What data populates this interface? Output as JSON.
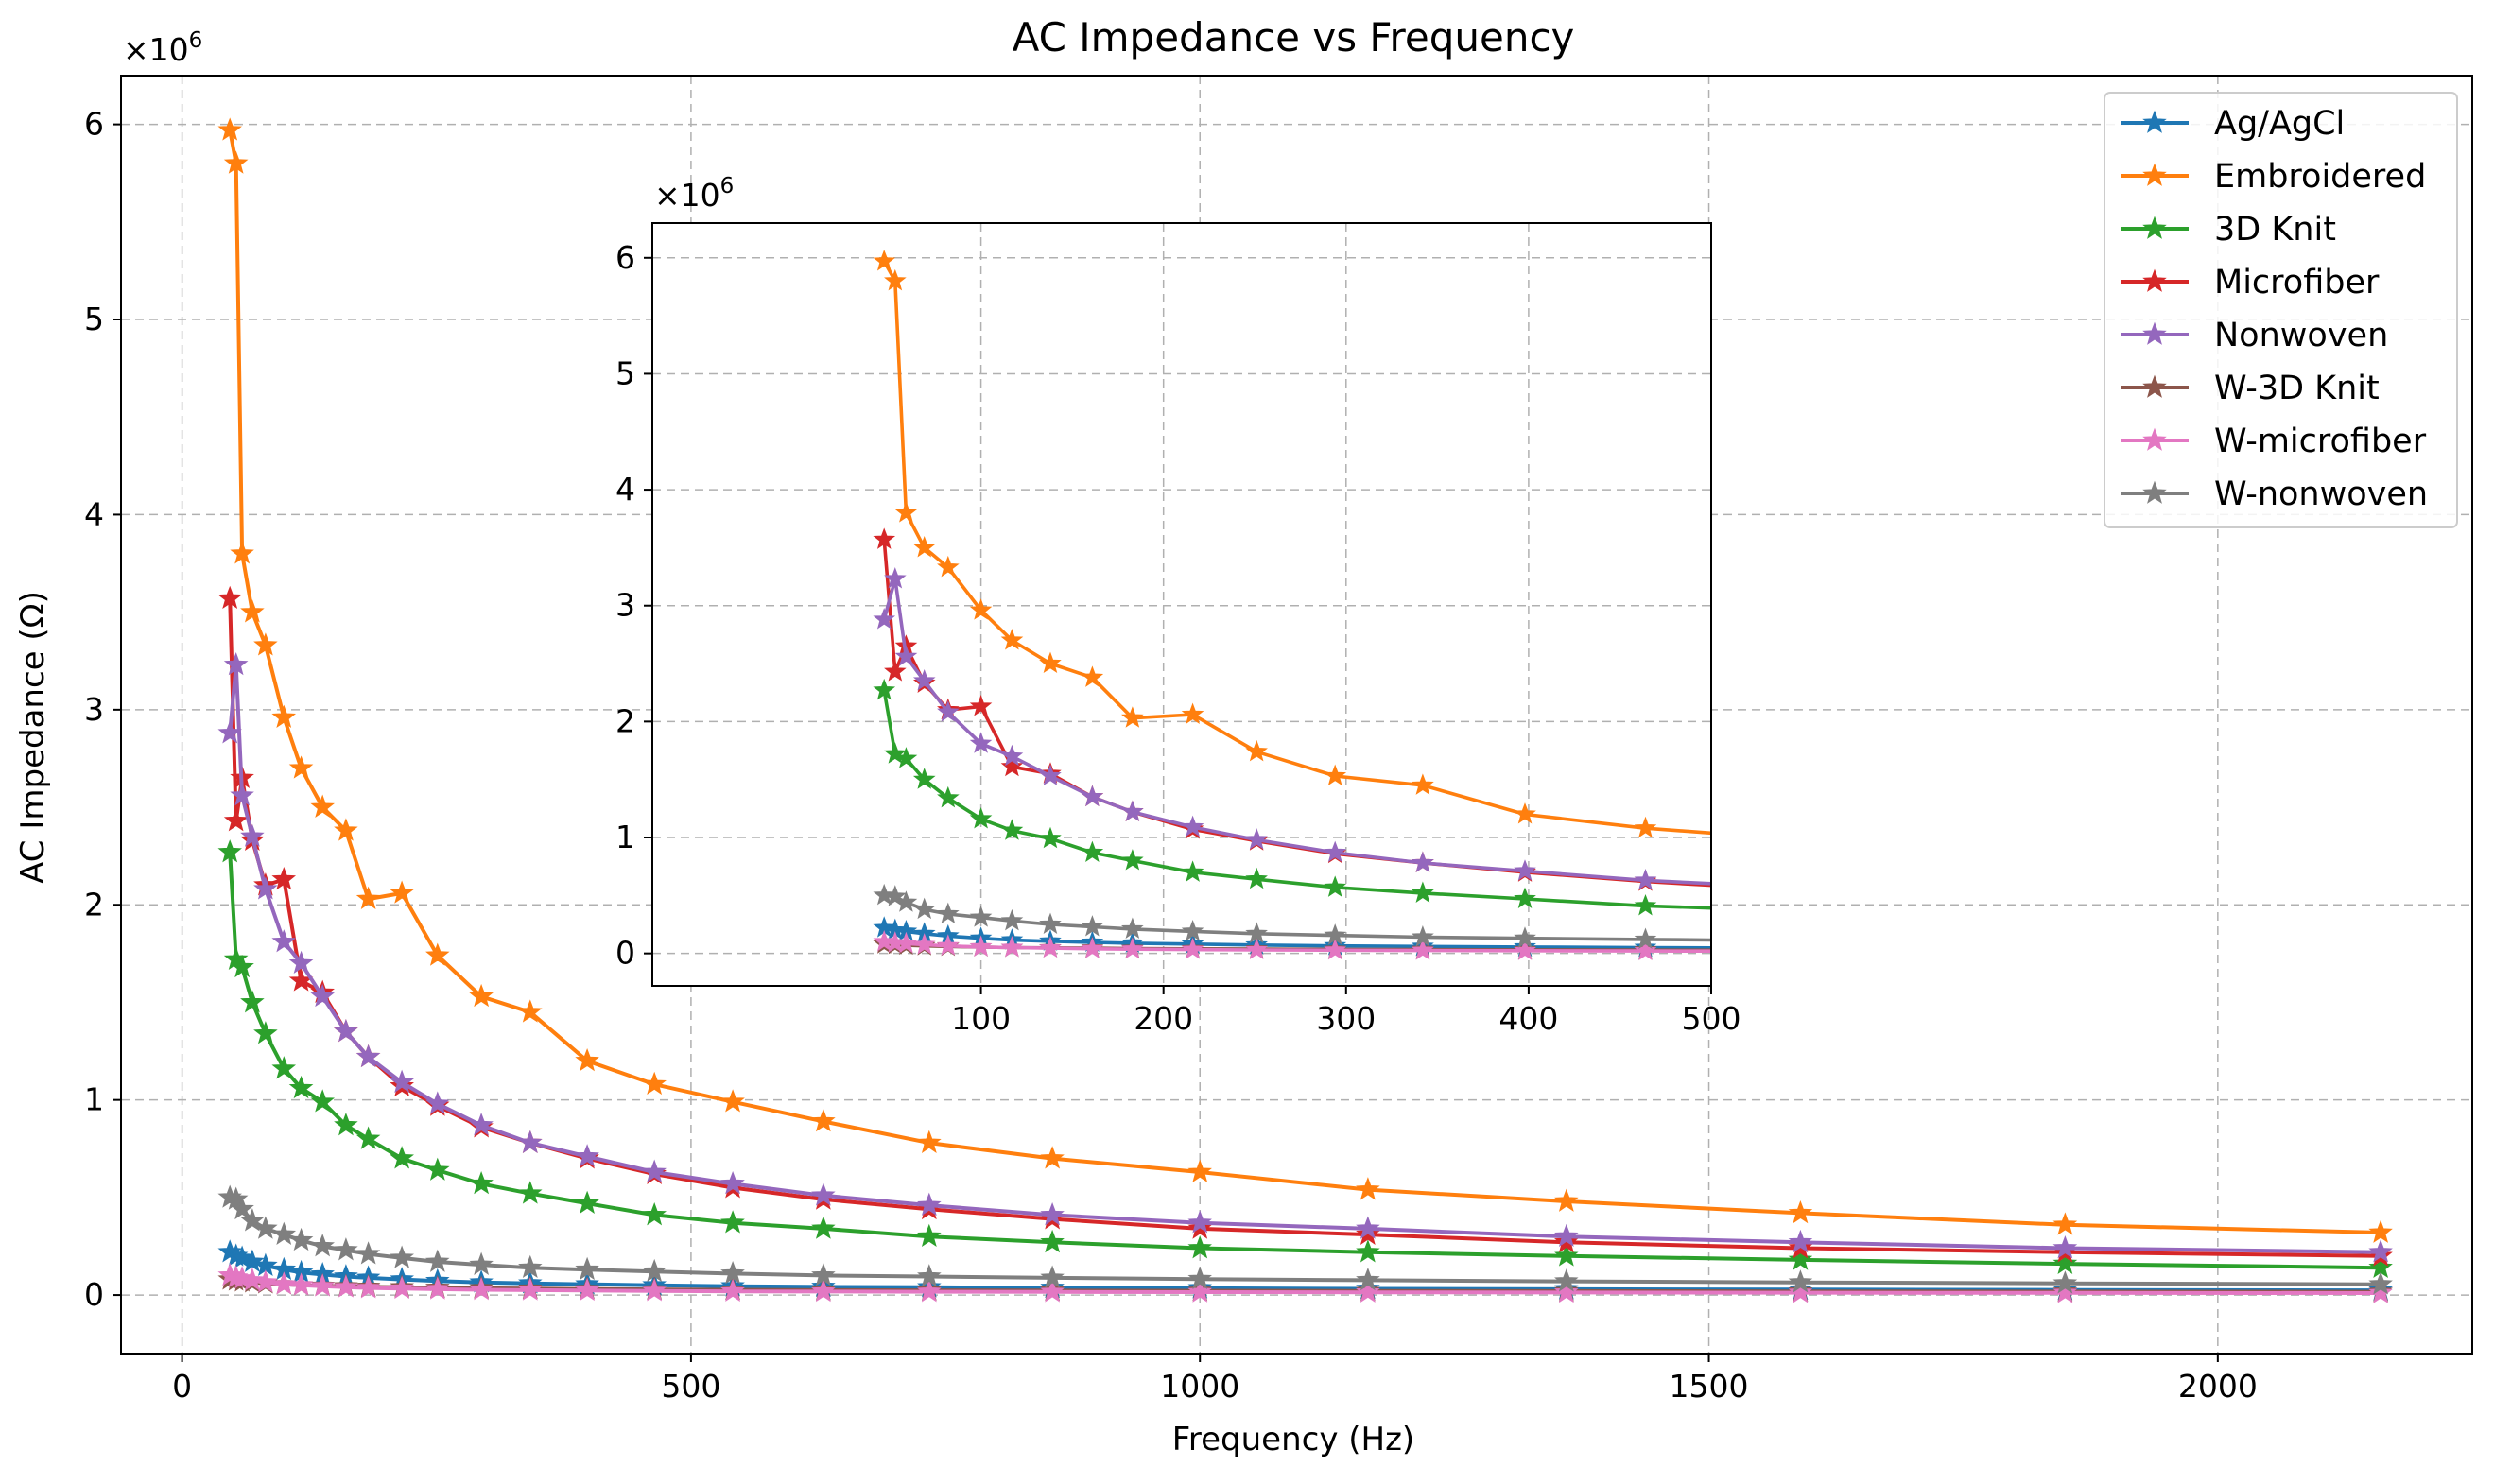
{
  "chart_data": {
    "type": "line",
    "title": "AC Impedance vs Frequency",
    "xlabel": "Frequency (Hz)",
    "ylabel": "AC Impedance (Ω)",
    "y_multiplier_base": "×10",
    "y_multiplier_exp": "6",
    "xlim": [
      -60,
      2250
    ],
    "ylim": [
      -0.3,
      6.25
    ],
    "xticks": [
      0,
      500,
      1000,
      1500,
      2000
    ],
    "xtick_labels": [
      "0",
      "500",
      "1000",
      "1500",
      "2000"
    ],
    "yticks": [
      0,
      1,
      2,
      3,
      4,
      5,
      6
    ],
    "ytick_labels": [
      "0",
      "1",
      "2",
      "3",
      "4",
      "5",
      "6"
    ],
    "grid": true,
    "legend_position": "upper right",
    "marker": "star",
    "x": [
      47,
      53,
      59,
      69,
      82,
      100,
      117,
      138,
      161,
      183,
      216,
      251,
      294,
      342,
      398,
      464,
      541,
      630,
      734,
      855,
      1000,
      1165,
      1360,
      1590,
      1850,
      2160
    ],
    "series": [
      {
        "name": "Ag/AgCl",
        "color": "#1f77b4",
        "values": [
          0.22,
          0.2,
          0.19,
          0.17,
          0.15,
          0.13,
          0.115,
          0.105,
          0.095,
          0.088,
          0.08,
          0.072,
          0.065,
          0.06,
          0.055,
          0.05,
          0.045,
          0.042,
          0.04,
          0.037,
          0.035,
          0.032,
          0.03,
          0.028,
          0.026,
          0.024
        ]
      },
      {
        "name": "Embroidered",
        "color": "#ff7f0e",
        "values": [
          5.97,
          5.8,
          3.8,
          3.5,
          3.33,
          2.96,
          2.7,
          2.5,
          2.38,
          2.03,
          2.06,
          1.74,
          1.53,
          1.45,
          1.2,
          1.08,
          0.99,
          0.89,
          0.78,
          0.7,
          0.63,
          0.54,
          0.48,
          0.42,
          0.36,
          0.32
        ]
      },
      {
        "name": "3D Knit",
        "color": "#2ca02c",
        "values": [
          2.27,
          1.72,
          1.68,
          1.5,
          1.34,
          1.16,
          1.06,
          0.99,
          0.87,
          0.8,
          0.7,
          0.64,
          0.57,
          0.52,
          0.47,
          0.41,
          0.37,
          0.34,
          0.3,
          0.27,
          0.24,
          0.22,
          0.2,
          0.18,
          0.16,
          0.14
        ]
      },
      {
        "name": "Microfiber",
        "color": "#d62728",
        "values": [
          3.57,
          2.43,
          2.65,
          2.33,
          2.1,
          2.13,
          1.61,
          1.55,
          1.35,
          1.22,
          1.07,
          0.97,
          0.86,
          0.78,
          0.7,
          0.62,
          0.55,
          0.49,
          0.44,
          0.39,
          0.34,
          0.31,
          0.27,
          0.24,
          0.22,
          0.2
        ]
      },
      {
        "name": "Nonwoven",
        "color": "#9467bd",
        "values": [
          2.88,
          3.23,
          2.56,
          2.35,
          2.08,
          1.81,
          1.7,
          1.53,
          1.35,
          1.22,
          1.09,
          0.98,
          0.87,
          0.78,
          0.71,
          0.63,
          0.57,
          0.51,
          0.46,
          0.41,
          0.37,
          0.34,
          0.3,
          0.27,
          0.24,
          0.22
        ]
      },
      {
        "name": "W-3D Knit",
        "color": "#8c564b",
        "values": [
          0.08,
          0.075,
          0.07,
          0.065,
          0.06,
          0.055,
          0.05,
          0.048,
          0.045,
          0.042,
          0.04,
          0.037,
          0.035,
          0.033,
          0.031,
          0.029,
          0.027,
          0.025,
          0.024,
          0.023,
          0.022,
          0.021,
          0.02,
          0.019,
          0.018,
          0.017
        ]
      },
      {
        "name": "W-microfiber",
        "color": "#e377c2",
        "values": [
          0.1,
          0.09,
          0.085,
          0.075,
          0.065,
          0.055,
          0.05,
          0.045,
          0.04,
          0.036,
          0.033,
          0.03,
          0.027,
          0.025,
          0.023,
          0.021,
          0.019,
          0.018,
          0.017,
          0.016,
          0.015,
          0.014,
          0.013,
          0.012,
          0.011,
          0.01
        ]
      },
      {
        "name": "W-nonwoven",
        "color": "#7f7f7f",
        "values": [
          0.5,
          0.49,
          0.44,
          0.38,
          0.34,
          0.31,
          0.28,
          0.25,
          0.23,
          0.21,
          0.19,
          0.17,
          0.155,
          0.14,
          0.13,
          0.12,
          0.11,
          0.1,
          0.095,
          0.088,
          0.082,
          0.076,
          0.07,
          0.065,
          0.06,
          0.055
        ]
      }
    ],
    "inset": {
      "xlim": [
        -80,
        500
      ],
      "ylim": [
        -0.28,
        6.3
      ],
      "xticks": [
        100,
        200,
        300,
        400,
        500
      ],
      "xtick_labels": [
        "100",
        "200",
        "300",
        "400",
        "500"
      ],
      "yticks": [
        0,
        1,
        2,
        3,
        4,
        5,
        6
      ],
      "ytick_labels": [
        "0",
        "1",
        "2",
        "3",
        "4",
        "5",
        "6"
      ],
      "y_multiplier_base": "×10",
      "y_multiplier_exp": "6"
    }
  }
}
